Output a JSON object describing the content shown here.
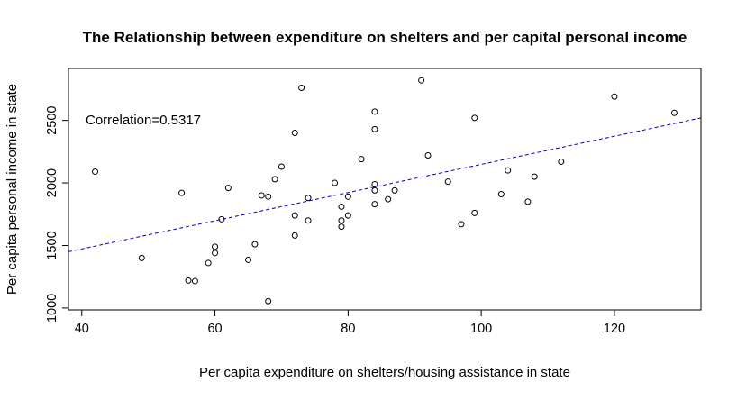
{
  "chart_data": {
    "type": "scatter",
    "title": "The Relationship between expenditure on shelters and per capital personal income",
    "xlabel": "Per capita expenditure on shelters/housing assistance in state",
    "ylabel": "Per capita personal income in state",
    "xlim": [
      38,
      133
    ],
    "ylim": [
      985,
      2915
    ],
    "xticks": [
      40,
      60,
      80,
      100,
      120
    ],
    "yticks": [
      1000,
      1500,
      2000,
      2500
    ],
    "annotation": "Correlation=0.5317",
    "point_color": "#000000",
    "trendline": {
      "style": "dashed",
      "color": "#0000cc",
      "points": [
        [
          38,
          1450
        ],
        [
          133,
          2520
        ]
      ]
    },
    "points": [
      [
        42,
        2090
      ],
      [
        49,
        1400
      ],
      [
        55,
        1920
      ],
      [
        56,
        1220
      ],
      [
        57,
        1215
      ],
      [
        59,
        1360
      ],
      [
        60,
        1490
      ],
      [
        60,
        1440
      ],
      [
        61,
        1710
      ],
      [
        62,
        1960
      ],
      [
        65,
        1385
      ],
      [
        66,
        1510
      ],
      [
        67,
        1900
      ],
      [
        68,
        1890
      ],
      [
        68,
        1055
      ],
      [
        69,
        2030
      ],
      [
        70,
        2130
      ],
      [
        72,
        2400
      ],
      [
        72,
        1740
      ],
      [
        72,
        1580
      ],
      [
        73,
        2760
      ],
      [
        74,
        1880
      ],
      [
        74,
        1700
      ],
      [
        78,
        2000
      ],
      [
        79,
        1810
      ],
      [
        79,
        1700
      ],
      [
        79,
        1650
      ],
      [
        80,
        1890
      ],
      [
        80,
        1740
      ],
      [
        82,
        2190
      ],
      [
        84,
        2570
      ],
      [
        84,
        2430
      ],
      [
        84,
        1990
      ],
      [
        84,
        1940
      ],
      [
        84,
        1830
      ],
      [
        86,
        1870
      ],
      [
        87,
        1940
      ],
      [
        91,
        2820
      ],
      [
        92,
        2220
      ],
      [
        95,
        2010
      ],
      [
        97,
        1670
      ],
      [
        99,
        2520
      ],
      [
        99,
        1760
      ],
      [
        103,
        1910
      ],
      [
        104,
        2100
      ],
      [
        107,
        1850
      ],
      [
        108,
        2050
      ],
      [
        112,
        2170
      ],
      [
        120,
        2690
      ],
      [
        129,
        2560
      ]
    ]
  }
}
